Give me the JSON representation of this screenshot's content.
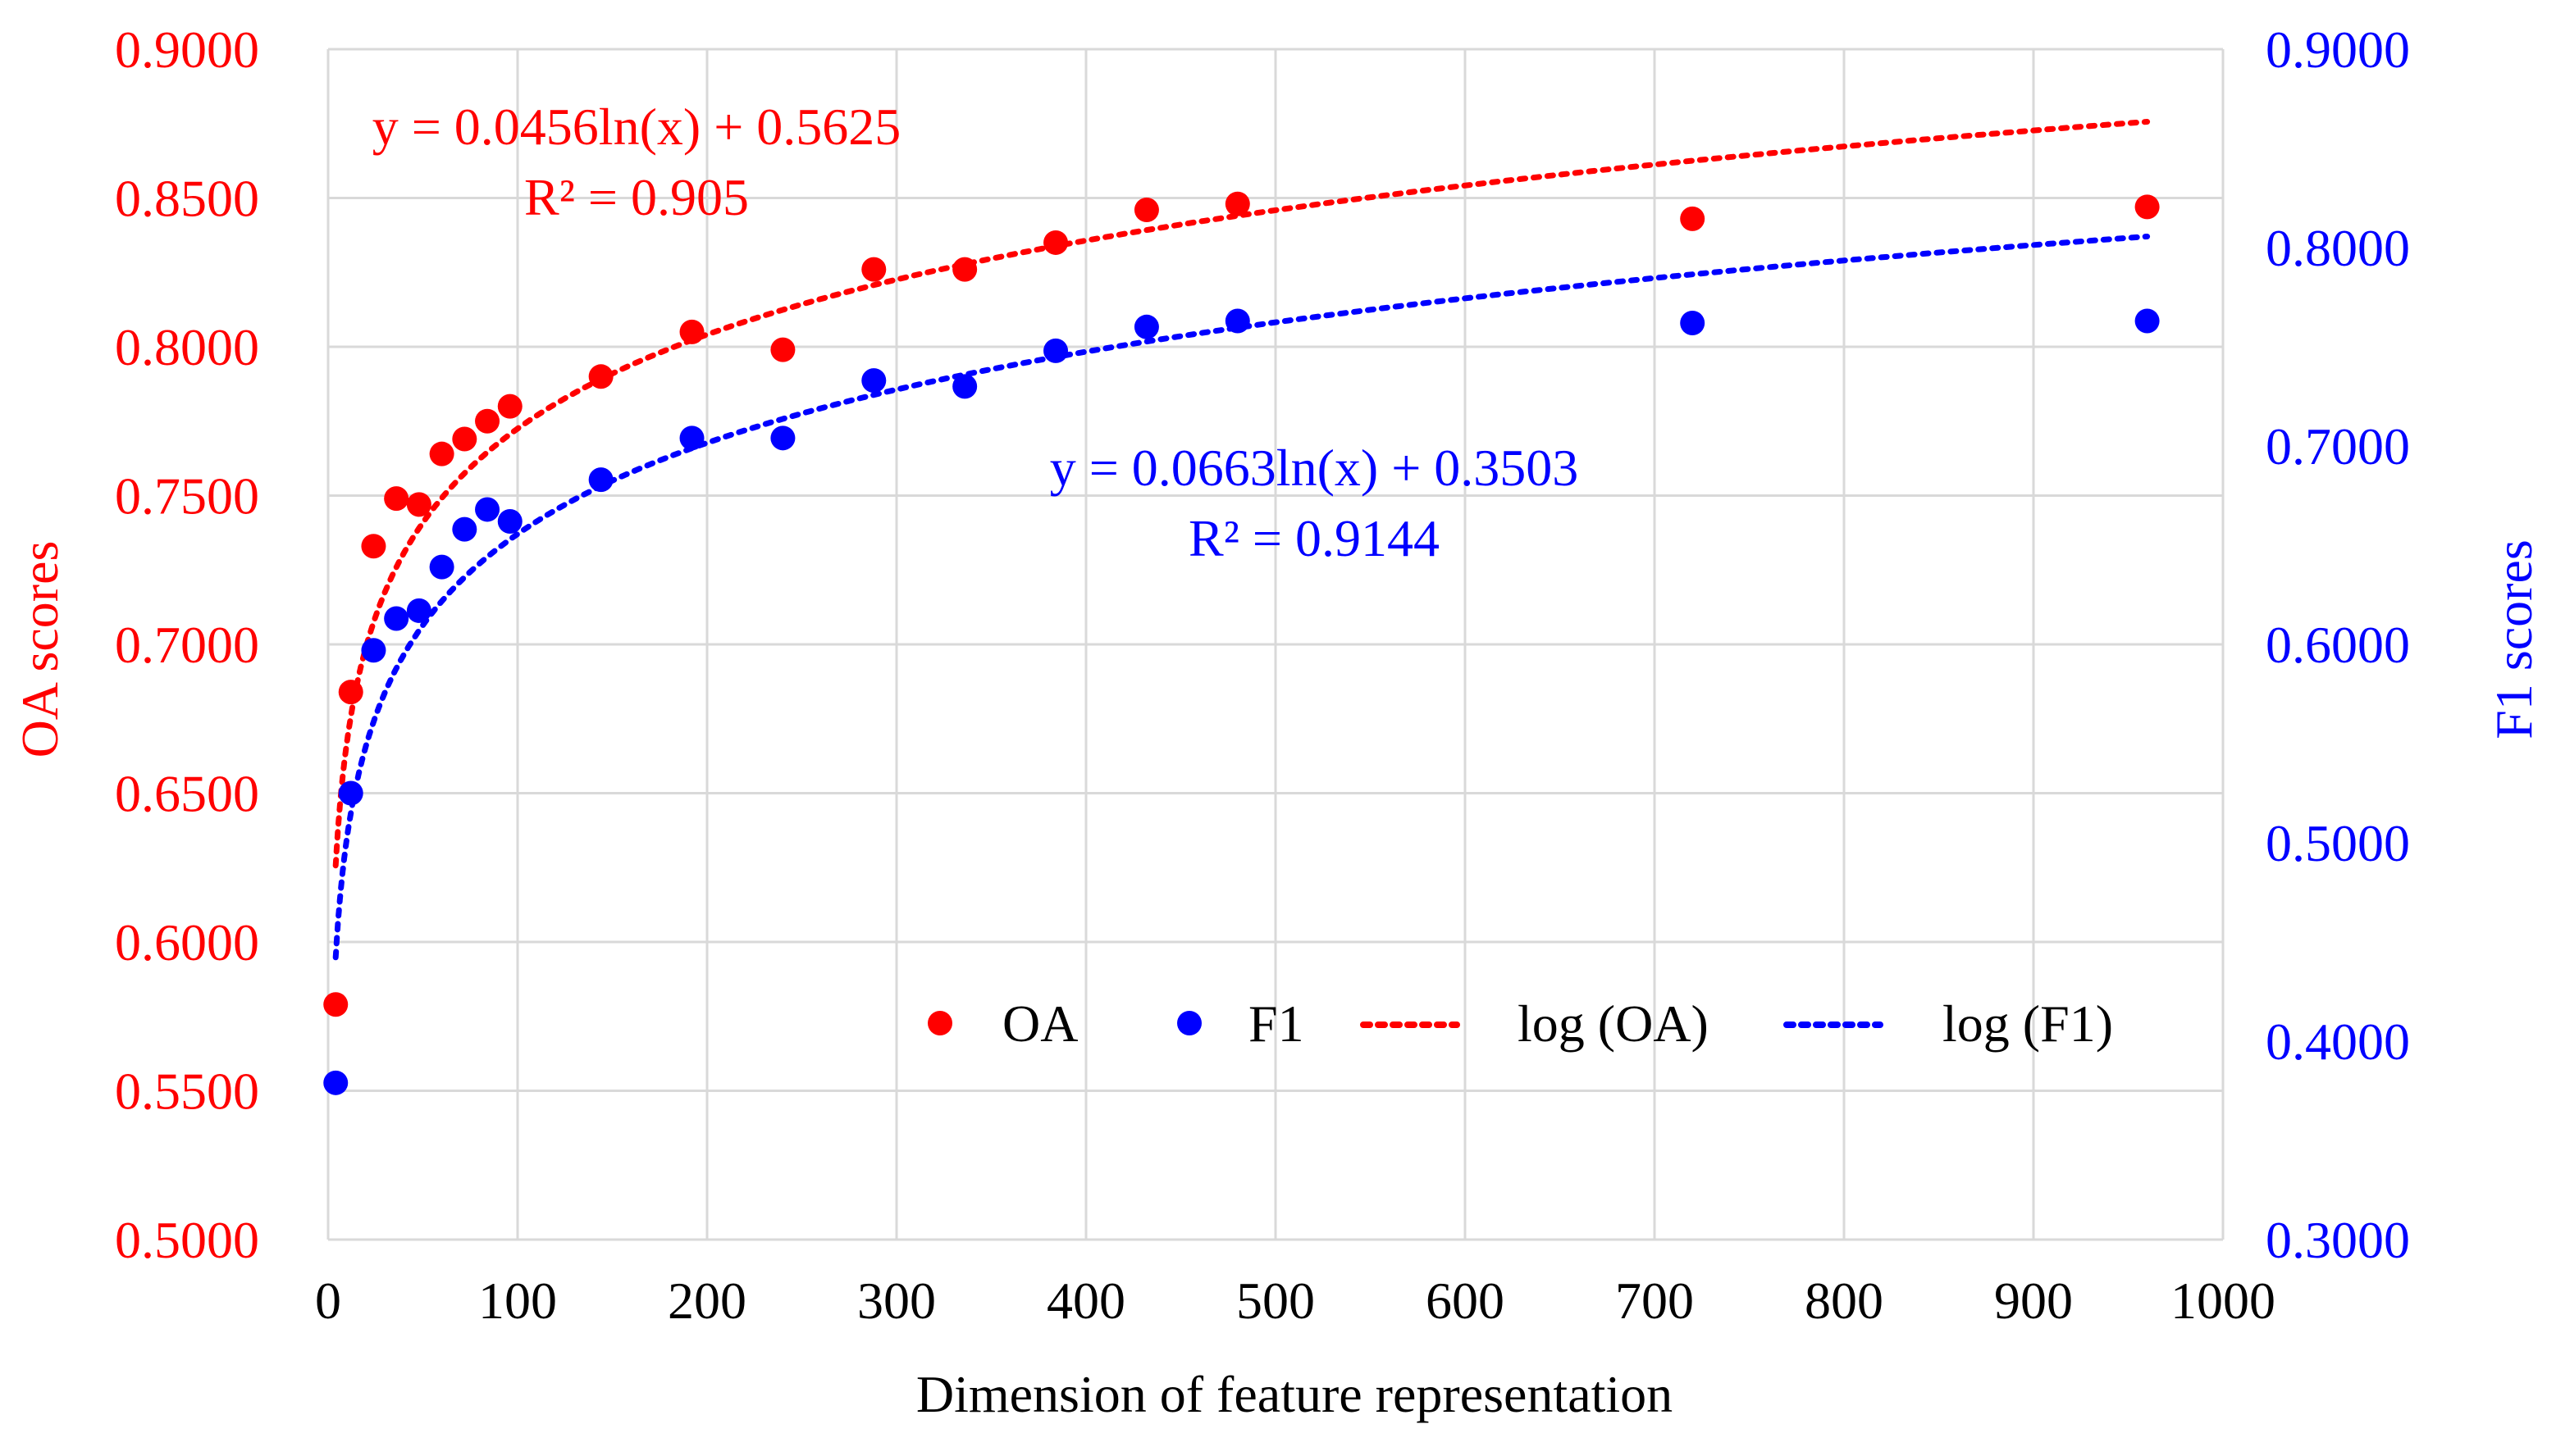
{
  "chart_data": {
    "type": "scatter",
    "title": "",
    "xlabel": "Dimension of feature representation",
    "ylabel_left": "OA scores",
    "ylabel_right": "F1 scores",
    "xlim": [
      0,
      1000
    ],
    "ylim_left": [
      0.5,
      0.9
    ],
    "ylim_right": [
      0.3,
      0.9
    ],
    "x_ticks": [
      0,
      100,
      200,
      300,
      400,
      500,
      600,
      700,
      800,
      900,
      1000
    ],
    "x_tick_labels": [
      "0",
      "100",
      "200",
      "300",
      "400",
      "500",
      "600",
      "700",
      "800",
      "900",
      "1000"
    ],
    "y_left_ticks": [
      0.5,
      0.55,
      0.6,
      0.65,
      0.7,
      0.75,
      0.8,
      0.85,
      0.9
    ],
    "y_left_tick_labels": [
      "0.5000",
      "0.5500",
      "0.6000",
      "0.6500",
      "0.7000",
      "0.7500",
      "0.8000",
      "0.8500",
      "0.9000"
    ],
    "y_right_ticks": [
      0.3,
      0.4,
      0.5,
      0.6,
      0.7,
      0.8,
      0.9
    ],
    "y_right_tick_labels": [
      "0.3000",
      "0.4000",
      "0.5000",
      "0.6000",
      "0.7000",
      "0.8000",
      "0.9000"
    ],
    "grid": true,
    "legend_position": "bottom-right",
    "series": [
      {
        "name": "OA",
        "axis": "left",
        "color": "#ff0000",
        "x": [
          4,
          12,
          24,
          36,
          48,
          60,
          72,
          84,
          96,
          144,
          192,
          240,
          288,
          336,
          384,
          432,
          480,
          720,
          960
        ],
        "y": [
          0.579,
          0.684,
          0.733,
          0.749,
          0.747,
          0.764,
          0.769,
          0.775,
          0.78,
          0.79,
          0.805,
          0.799,
          0.826,
          0.826,
          0.835,
          0.846,
          0.848,
          0.843,
          0.847
        ]
      },
      {
        "name": "F1",
        "axis": "right",
        "color": "#0000ff",
        "x": [
          4,
          12,
          24,
          36,
          48,
          60,
          72,
          84,
          96,
          144,
          192,
          240,
          288,
          336,
          384,
          432,
          480,
          720,
          960
        ],
        "y": [
          0.379,
          0.525,
          0.597,
          0.613,
          0.617,
          0.639,
          0.658,
          0.668,
          0.662,
          0.683,
          0.704,
          0.704,
          0.733,
          0.73,
          0.748,
          0.76,
          0.763,
          0.762,
          0.763
        ]
      }
    ],
    "trendlines": [
      {
        "name": "log (OA)",
        "axis": "left",
        "color": "#ff0000",
        "a": 0.0456,
        "b": 0.5625,
        "x_range": [
          4,
          960
        ],
        "equation": "y = 0.0456ln(x) + 0.5625",
        "r2": "R² = 0.905"
      },
      {
        "name": "log (F1)",
        "axis": "right",
        "color": "#0000ff",
        "a": 0.0663,
        "b": 0.3503,
        "x_range": [
          4,
          960
        ],
        "equation": "y = 0.0663ln(x) + 0.3503",
        "r2": "R² = 0.9144"
      }
    ],
    "legend": [
      "OA",
      "F1",
      "log (OA)",
      "log (F1)"
    ]
  }
}
